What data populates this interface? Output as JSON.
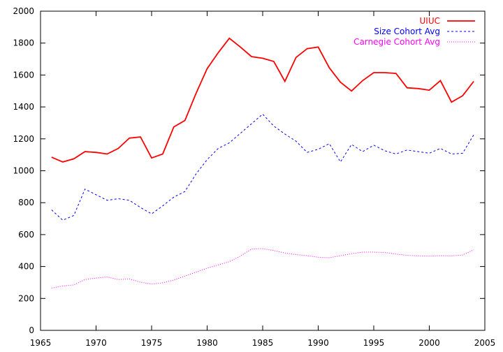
{
  "chart_data": {
    "type": "line",
    "title": "",
    "xlabel": "",
    "ylabel": "",
    "xlim": [
      1965,
      2005
    ],
    "ylim": [
      0,
      2000
    ],
    "xticks": [
      1965,
      1970,
      1975,
      1980,
      1985,
      1990,
      1995,
      2000,
      2005
    ],
    "yticks": [
      0,
      200,
      400,
      600,
      800,
      1000,
      1200,
      1400,
      1600,
      1800,
      2000
    ],
    "grid": false,
    "legend_position": "top-right",
    "x": [
      1966,
      1967,
      1968,
      1969,
      1970,
      1971,
      1972,
      1973,
      1974,
      1975,
      1976,
      1977,
      1978,
      1979,
      1980,
      1981,
      1982,
      1983,
      1984,
      1985,
      1986,
      1987,
      1988,
      1989,
      1990,
      1991,
      1992,
      1993,
      1994,
      1995,
      1996,
      1997,
      1998,
      1999,
      2000,
      2001,
      2002,
      2003,
      2004
    ],
    "series": [
      {
        "name": "UIUC",
        "color": "#ff0000",
        "style": "solid",
        "values": [
          1085,
          1055,
          1075,
          1120,
          1115,
          1105,
          1140,
          1205,
          1212,
          1080,
          1105,
          1275,
          1315,
          1485,
          1640,
          1740,
          1830,
          1775,
          1715,
          1705,
          1685,
          1560,
          1710,
          1765,
          1775,
          1645,
          1555,
          1500,
          1565,
          1615,
          1615,
          1610,
          1520,
          1515,
          1505,
          1565,
          1430,
          1470,
          1560
        ]
      },
      {
        "name": "Size Cohort Avg",
        "color": "#0000ff",
        "style": "dashed",
        "values": [
          755,
          690,
          720,
          885,
          850,
          815,
          825,
          815,
          770,
          730,
          780,
          835,
          870,
          980,
          1070,
          1140,
          1175,
          1235,
          1295,
          1355,
          1280,
          1230,
          1185,
          1115,
          1135,
          1170,
          1055,
          1165,
          1120,
          1160,
          1125,
          1105,
          1130,
          1120,
          1110,
          1140,
          1105,
          1110,
          1225
        ]
      },
      {
        "name": "Carnegie Cohort Avg",
        "color": "#ff00ff",
        "style": "dotted",
        "values": [
          265,
          278,
          285,
          318,
          328,
          335,
          318,
          322,
          302,
          290,
          298,
          315,
          340,
          365,
          390,
          410,
          430,
          465,
          510,
          512,
          500,
          485,
          475,
          468,
          458,
          455,
          468,
          480,
          490,
          490,
          488,
          478,
          470,
          467,
          465,
          468,
          467,
          472,
          505
        ]
      }
    ]
  }
}
